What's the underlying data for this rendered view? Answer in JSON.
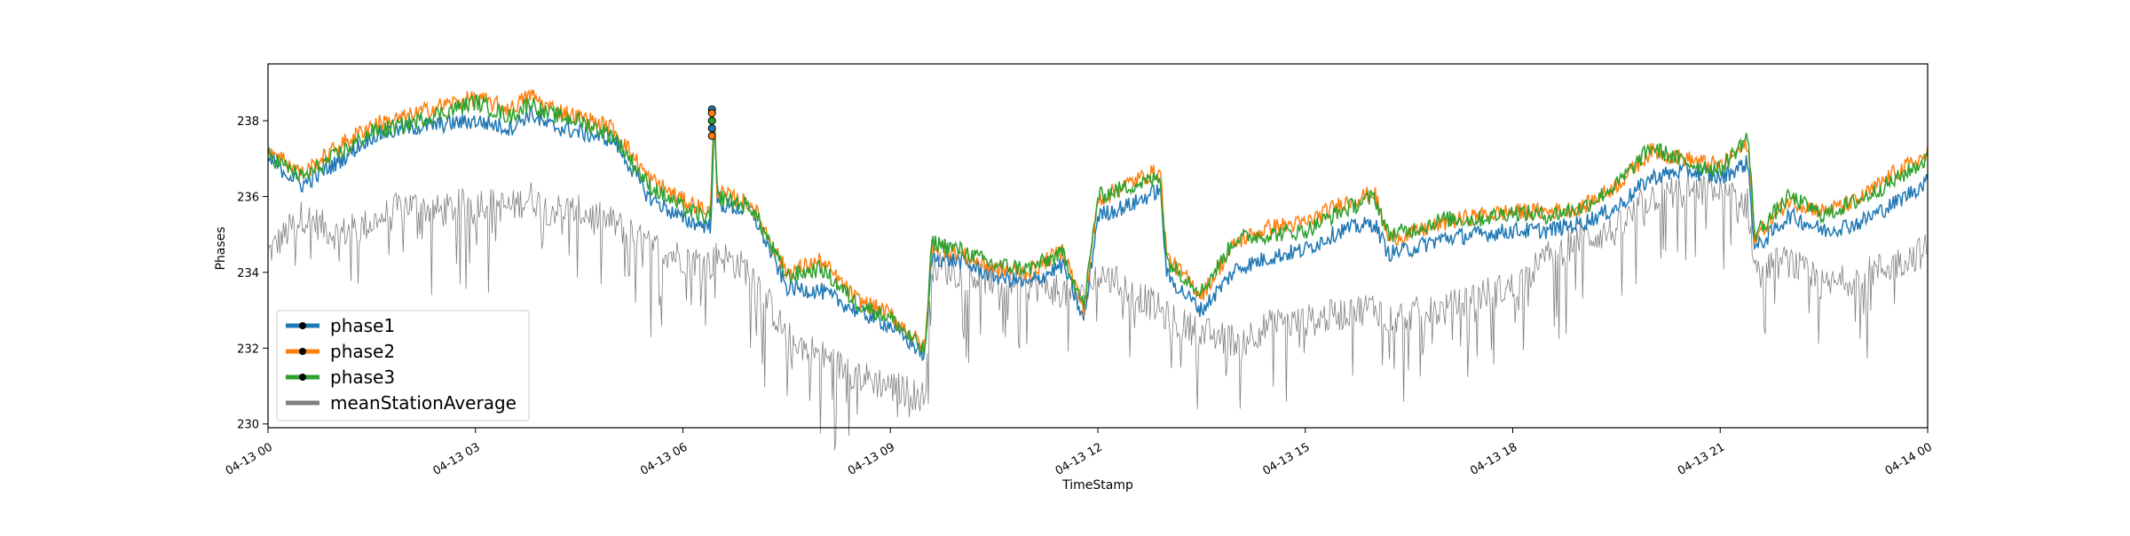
{
  "chart_data": {
    "type": "line",
    "title": "",
    "xlabel": "TimeStamp",
    "ylabel": "Phases",
    "xlim": [
      "2023-04-13 00:00",
      "2023-04-14 00:00"
    ],
    "ylim": [
      229.9,
      239.5
    ],
    "grid": false,
    "legend_position": "lower-left",
    "x_tick_labels": [
      "04-13 00",
      "04-13 03",
      "04-13 06",
      "04-13 09",
      "04-13 12",
      "04-13 15",
      "04-13 18",
      "04-13 21",
      "04-14 00"
    ],
    "y_tick_labels": [
      "230",
      "232",
      "234",
      "236",
      "238"
    ],
    "x_hours": [
      0,
      0.5,
      1,
      1.5,
      2,
      2.5,
      3,
      3.5,
      3.8,
      4,
      4.5,
      5,
      5.5,
      6,
      6.4,
      6.45,
      6.5,
      7,
      7.5,
      8,
      8.5,
      9,
      9.5,
      9.6,
      10,
      10.5,
      11,
      11.5,
      11.8,
      12,
      12.5,
      12.9,
      13,
      13.5,
      14,
      14.5,
      15,
      15.5,
      16,
      16.2,
      16.5,
      17,
      17.5,
      18,
      18.5,
      19,
      19.5,
      20,
      20.5,
      21,
      21.4,
      21.5,
      22,
      22.5,
      23,
      23.5,
      24
    ],
    "series": [
      {
        "name": "phase1",
        "color": "#1f77b4",
        "marker": "dot",
        "values": [
          237.0,
          236.3,
          236.9,
          237.6,
          237.8,
          237.9,
          238.0,
          237.8,
          238.2,
          237.9,
          237.7,
          237.5,
          236.0,
          235.4,
          235.2,
          237.9,
          235.8,
          235.6,
          233.6,
          233.5,
          233.0,
          232.6,
          231.8,
          234.4,
          234.3,
          233.9,
          233.7,
          234.2,
          232.7,
          235.5,
          235.8,
          236.2,
          233.9,
          233.0,
          234.1,
          234.4,
          234.6,
          235.1,
          235.3,
          234.5,
          234.6,
          234.9,
          235.0,
          235.1,
          235.1,
          235.3,
          235.7,
          236.5,
          236.7,
          236.5,
          236.9,
          234.6,
          235.5,
          235.1,
          235.3,
          235.8,
          236.4
        ]
      },
      {
        "name": "phase2",
        "color": "#ff7f0e",
        "marker": "dot",
        "values": [
          237.3,
          236.6,
          237.3,
          237.9,
          238.1,
          238.4,
          238.6,
          238.3,
          238.7,
          238.4,
          238.1,
          237.8,
          236.5,
          235.9,
          235.6,
          238.2,
          236.1,
          235.8,
          234.0,
          234.3,
          233.3,
          232.9,
          232.0,
          234.7,
          234.5,
          234.1,
          234.0,
          234.6,
          233.0,
          235.9,
          236.4,
          236.7,
          234.4,
          233.4,
          234.8,
          235.2,
          235.3,
          235.8,
          236.1,
          234.9,
          235.0,
          235.3,
          235.5,
          235.6,
          235.6,
          235.7,
          236.3,
          237.2,
          237.0,
          236.8,
          237.4,
          234.9,
          235.9,
          235.6,
          235.9,
          236.6,
          237.1
        ]
      },
      {
        "name": "phase3",
        "color": "#2ca02c",
        "marker": "dot",
        "values": [
          237.1,
          236.5,
          237.1,
          237.7,
          237.9,
          238.2,
          238.5,
          238.1,
          238.5,
          238.2,
          238.0,
          237.6,
          236.3,
          235.7,
          235.4,
          238.0,
          236.0,
          235.7,
          233.9,
          234.1,
          233.2,
          232.8,
          231.9,
          234.8,
          234.6,
          234.2,
          234.1,
          234.5,
          233.1,
          236.0,
          236.3,
          236.5,
          234.3,
          233.5,
          234.9,
          235.0,
          235.1,
          235.6,
          236.0,
          235.0,
          235.1,
          235.4,
          235.4,
          235.6,
          235.5,
          235.7,
          236.3,
          237.3,
          236.9,
          236.7,
          237.6,
          235.0,
          236.0,
          235.5,
          235.9,
          236.4,
          237.0
        ]
      },
      {
        "name": "meanStationAverage",
        "color": "#808080",
        "marker": "none",
        "values": [
          234.5,
          235.5,
          235.0,
          235.3,
          235.8,
          235.6,
          235.9,
          235.7,
          236.0,
          235.7,
          235.6,
          235.3,
          234.7,
          234.4,
          234.2,
          234.3,
          234.5,
          234.0,
          232.3,
          231.8,
          231.3,
          231.0,
          230.7,
          234.2,
          234.0,
          233.8,
          233.7,
          233.5,
          233.3,
          234.0,
          233.5,
          233.0,
          232.8,
          232.4,
          232.2,
          232.6,
          232.7,
          232.9,
          233.1,
          232.8,
          232.9,
          233.0,
          233.4,
          233.6,
          234.4,
          234.9,
          235.1,
          236.0,
          236.2,
          236.1,
          235.8,
          234.1,
          234.3,
          233.6,
          233.9,
          234.2,
          234.6
        ]
      }
    ]
  }
}
